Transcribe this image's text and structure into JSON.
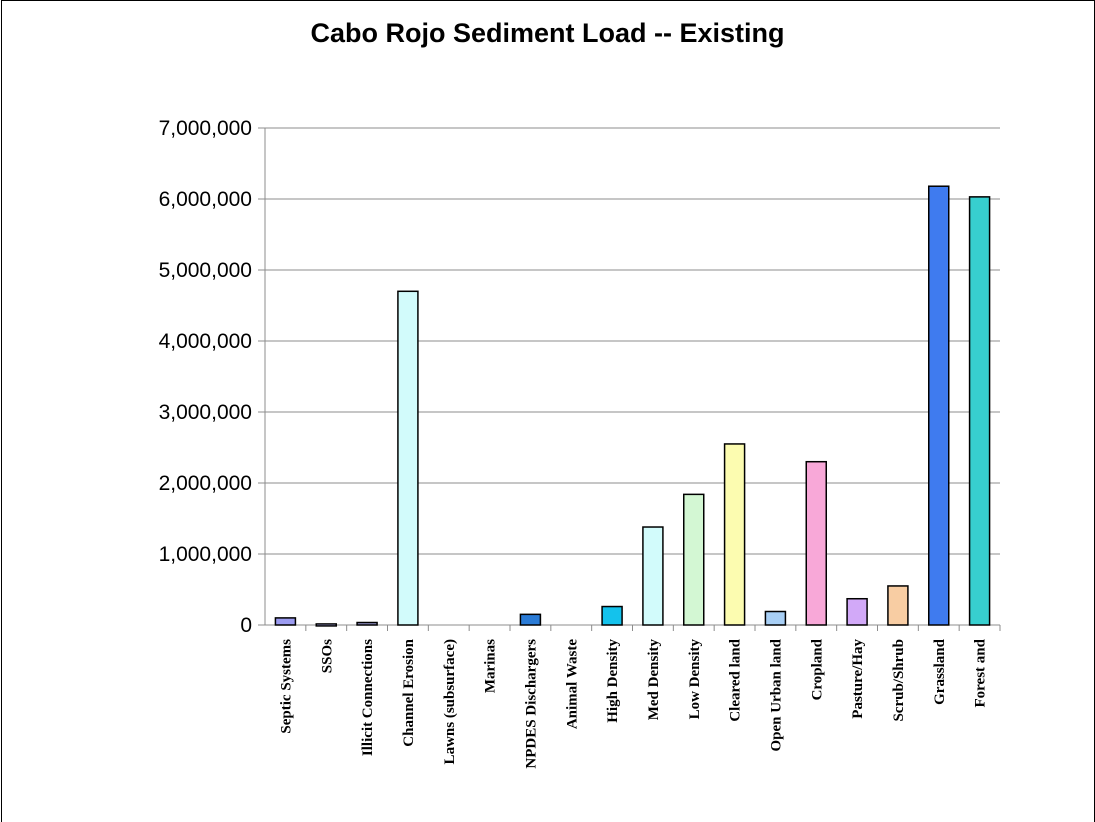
{
  "chart_data": {
    "type": "bar",
    "title": "Cabo Rojo Sediment Load -- Existing",
    "xlabel": "",
    "ylabel": "",
    "ylim": [
      0,
      7000000
    ],
    "yticks": [
      "0",
      "1,000,000",
      "2,000,000",
      "3,000,000",
      "4,000,000",
      "5,000,000",
      "6,000,000",
      "7,000,000"
    ],
    "grid": true,
    "legend": "none",
    "categories": [
      "Septic Systems",
      "SSOs",
      "Illicit Connections",
      "Channel Erosion",
      "Lawns (subsurface)",
      "Marinas",
      "NPDES Dischargers",
      "Animal Waste",
      "High Density",
      "Med Density",
      "Low Density",
      "Cleared land",
      "Open Urban land",
      "Cropland",
      "Pasture/Hay",
      "Scrub/Shrub",
      "Grassland",
      "Forest and"
    ],
    "values": [
      100000,
      15000,
      35000,
      4700000,
      0,
      0,
      150000,
      0,
      260000,
      1380000,
      1840000,
      2550000,
      190000,
      2300000,
      370000,
      550000,
      6180000,
      6030000
    ],
    "colors": [
      "#9b9bf0",
      "#b8b8f8",
      "#9898d0",
      "#d2fbfb",
      "#ffffff",
      "#ffffff",
      "#2a7bd6",
      "#ffffff",
      "#14c2ec",
      "#d2fbfb",
      "#d3f7d3",
      "#fcfcb0",
      "#a8cff5",
      "#f8a8d8",
      "#d2a9f8",
      "#f8cda3",
      "#3f7bef",
      "#37cfcf"
    ]
  }
}
